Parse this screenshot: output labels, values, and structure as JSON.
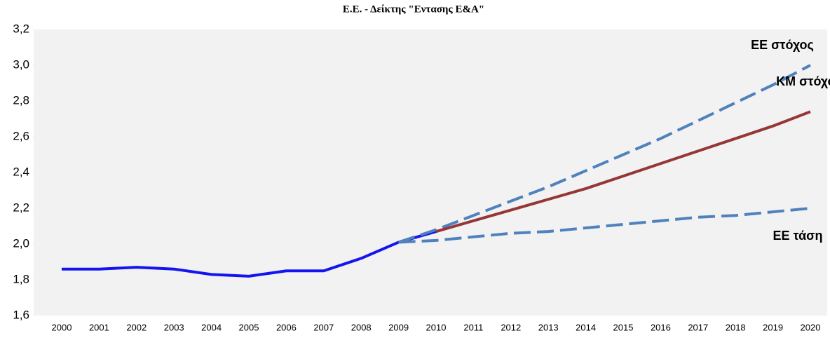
{
  "chart_data": {
    "type": "line",
    "title": "Ε.Ε. - Δείκτης \"Εντασης Ε&Α\"",
    "categories": [
      "2000",
      "2001",
      "2002",
      "2003",
      "2004",
      "2005",
      "2006",
      "2007",
      "2008",
      "2009",
      "2010",
      "2011",
      "2012",
      "2013",
      "2014",
      "2015",
      "2016",
      "2017",
      "2018",
      "2019",
      "2020"
    ],
    "ylim": [
      1.6,
      3.2
    ],
    "yticks": [
      {
        "value": 1.6,
        "label": "1,6"
      },
      {
        "value": 1.8,
        "label": "1,8"
      },
      {
        "value": 2.0,
        "label": "2,0"
      },
      {
        "value": 2.2,
        "label": "2,2"
      },
      {
        "value": 2.4,
        "label": "2,4"
      },
      {
        "value": 2.6,
        "label": "2,6"
      },
      {
        "value": 2.8,
        "label": "2,8"
      },
      {
        "value": 3.0,
        "label": "3,0"
      },
      {
        "value": 3.2,
        "label": "3,2"
      }
    ],
    "series": [
      {
        "color": "#1414f0",
        "dashed": false,
        "values": [
          1.86,
          1.86,
          1.87,
          1.86,
          1.83,
          1.82,
          1.85,
          1.85,
          1.92,
          2.01,
          2.07,
          null,
          null,
          null,
          null,
          null,
          null,
          null,
          null,
          null,
          null
        ]
      },
      {
        "name": "ΕΕ στόχος",
        "color": "#4f81bd",
        "dashed": true,
        "values": [
          null,
          null,
          null,
          null,
          null,
          null,
          null,
          null,
          null,
          2.01,
          2.08,
          2.16,
          2.24,
          2.32,
          2.41,
          2.5,
          2.59,
          2.69,
          2.79,
          2.89,
          3.0
        ]
      },
      {
        "name": "ΚΜ στόχος",
        "color": "#953735",
        "dashed": false,
        "values": [
          null,
          null,
          null,
          null,
          null,
          null,
          null,
          null,
          null,
          null,
          2.07,
          2.13,
          2.19,
          2.25,
          2.31,
          2.38,
          2.45,
          2.52,
          2.59,
          2.66,
          2.74
        ]
      },
      {
        "name": "ΕΕ τάση",
        "color": "#4f81bd",
        "dashed": true,
        "values": [
          null,
          null,
          null,
          null,
          null,
          null,
          null,
          null,
          null,
          2.01,
          2.02,
          2.04,
          2.06,
          2.07,
          2.09,
          2.11,
          2.13,
          2.15,
          2.16,
          2.18,
          2.2
        ]
      }
    ]
  }
}
